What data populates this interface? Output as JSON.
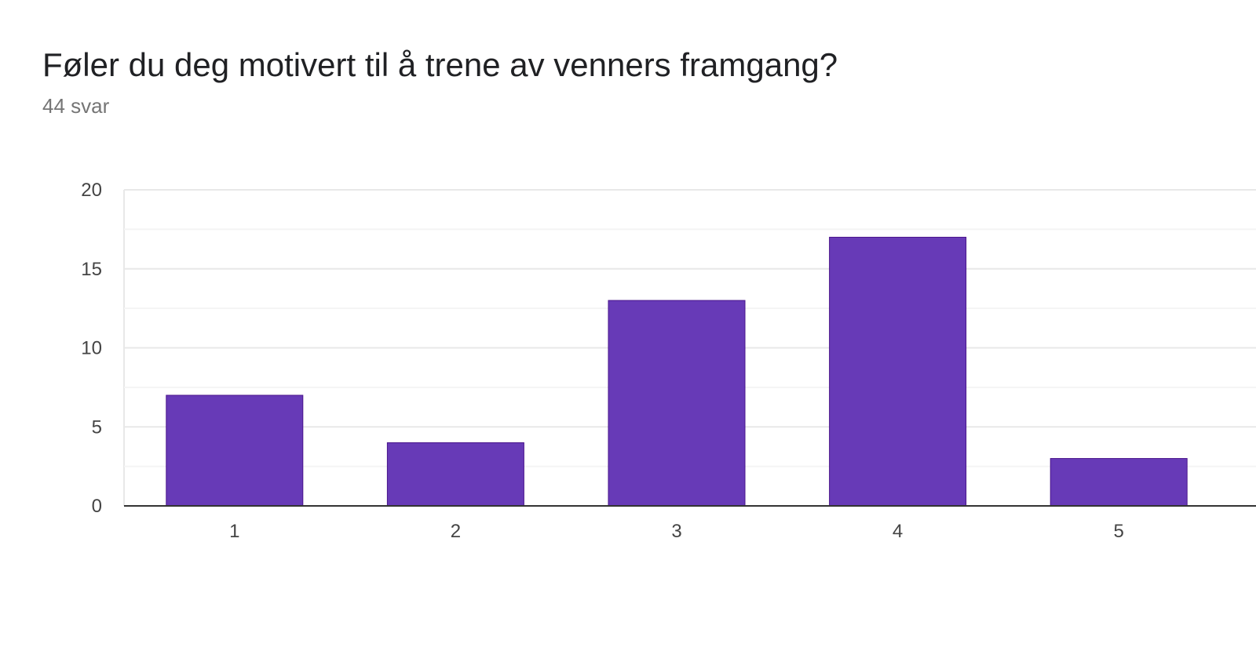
{
  "title": "Føler du deg motivert til å trene av venners framgang?",
  "subtitle": "44 svar",
  "colors": {
    "bar": "#673ab7",
    "bar_border": "#4a148c",
    "grid_major": "#e8e8e8",
    "grid_minor": "#f4f4f4",
    "axis": "#333333",
    "title": "#202124",
    "subtitle": "#757575"
  },
  "chart_data": {
    "type": "bar",
    "title": "Føler du deg motivert til å trene av venners framgang?",
    "subtitle": "44 svar",
    "categories": [
      "1",
      "2",
      "3",
      "4",
      "5"
    ],
    "values": [
      7,
      4,
      13,
      17,
      3
    ],
    "xlabel": "",
    "ylabel": "",
    "ylim": [
      0,
      20
    ],
    "yticks": [
      0,
      5,
      10,
      15,
      20
    ],
    "grid": true,
    "legend": "none"
  }
}
